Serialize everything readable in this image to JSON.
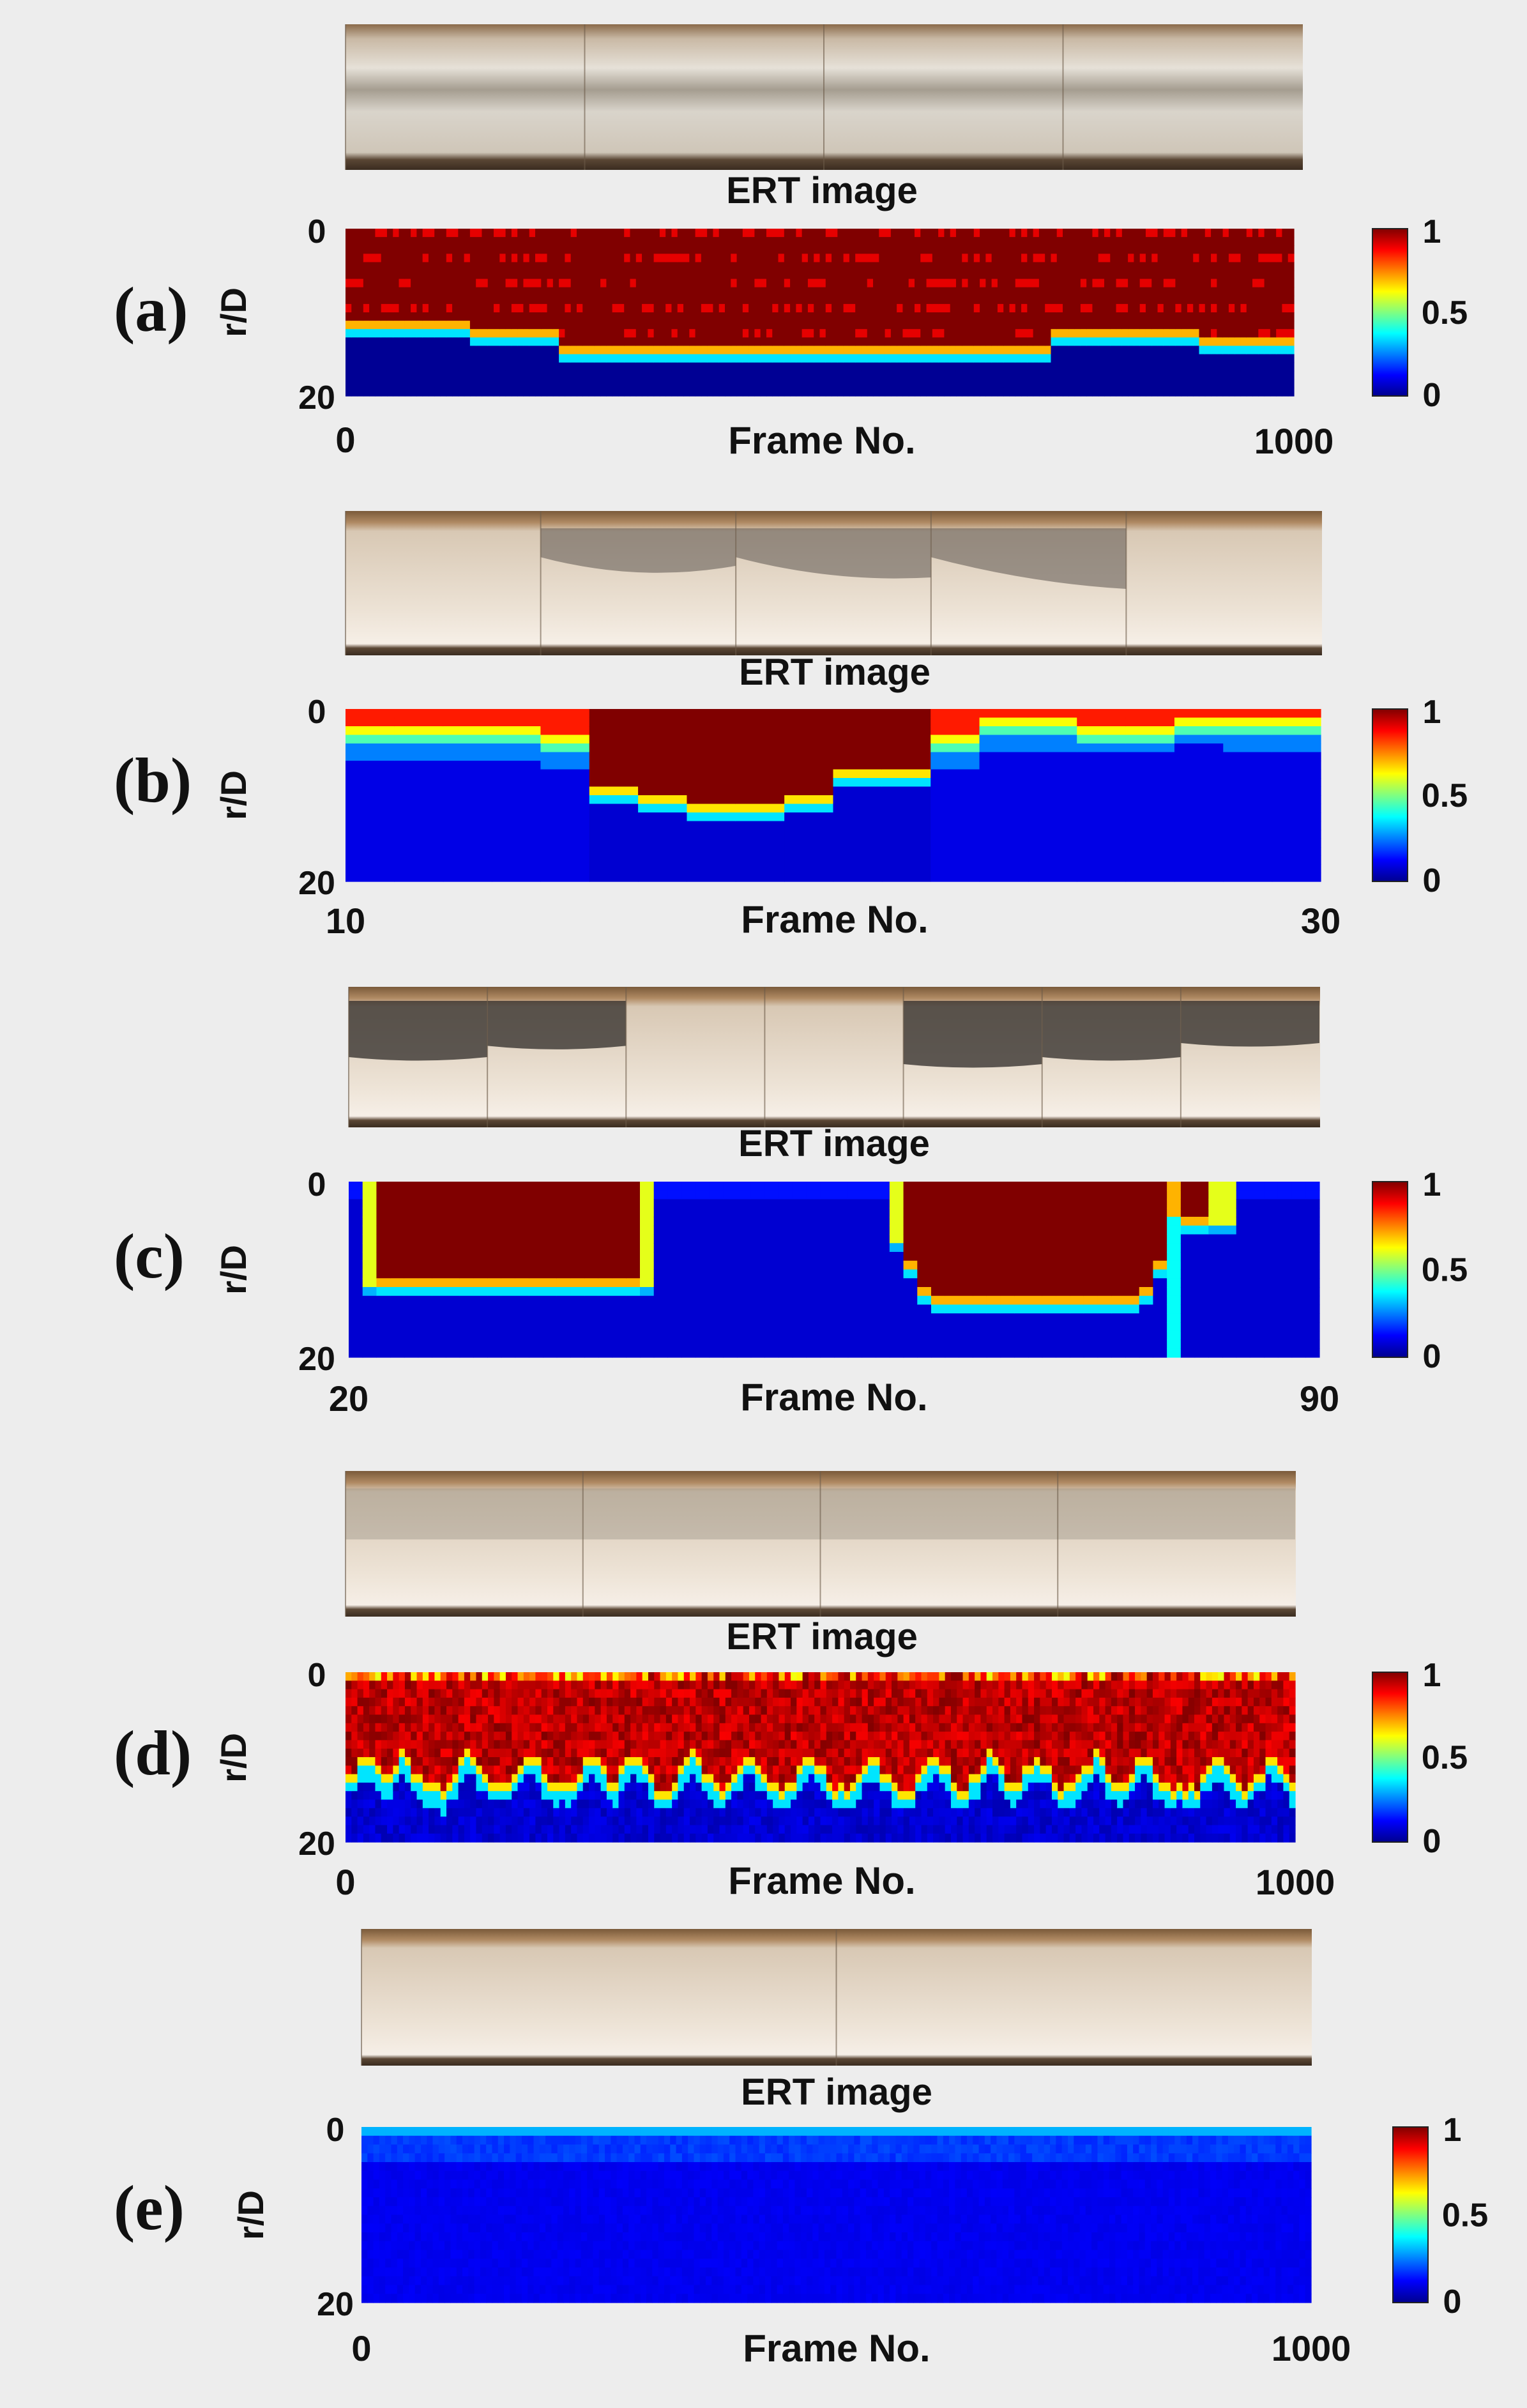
{
  "colors": {
    "background": "#ededed",
    "colormap": "jet",
    "photo_tone": "#e9dccd"
  },
  "photo_strip_label": "flow photographs",
  "chart_data": [
    {
      "type": "heatmap",
      "panel_label": "(a)",
      "title": "ERT image",
      "xlabel": "Frame No.",
      "ylabel": "r/D",
      "x_ticks": [
        "0",
        "1000"
      ],
      "y_ticks": [
        "0",
        "20"
      ],
      "xlim": [
        0,
        1000
      ],
      "ylim": [
        20,
        0
      ],
      "colorbar_ticks": [
        "1",
        "0.5",
        "0"
      ],
      "clim": [
        0,
        1
      ],
      "photo_frames": 4,
      "interface_r": [
        [
          0,
          11.5
        ],
        [
          125,
          11.5
        ],
        [
          130,
          13
        ],
        [
          220,
          13
        ],
        [
          225,
          14.5
        ],
        [
          740,
          14.5
        ],
        [
          745,
          13
        ],
        [
          895,
          13
        ],
        [
          900,
          14
        ],
        [
          1000,
          14
        ]
      ]
    },
    {
      "type": "heatmap",
      "panel_label": "(b)",
      "title": "ERT image",
      "xlabel": "Frame No.",
      "ylabel": "r/D",
      "x_ticks": [
        "10",
        "30"
      ],
      "y_ticks": [
        "0",
        "20"
      ],
      "xlim": [
        10,
        30
      ],
      "ylim": [
        20,
        0
      ],
      "colorbar_ticks": [
        "1",
        "0.5",
        "0"
      ],
      "clim": [
        0,
        1
      ],
      "photo_frames": 5,
      "columns": [
        4,
        4,
        4,
        4,
        5,
        9.5,
        11,
        11.5,
        12,
        10.5,
        8,
        7.5,
        5,
        3,
        3,
        3.5,
        3.5,
        2.5,
        3,
        3
      ],
      "saturated": [
        0,
        0,
        0,
        0,
        0,
        1,
        1,
        1,
        1,
        1,
        1,
        1,
        0,
        0,
        0,
        0,
        0,
        0,
        0,
        0
      ]
    },
    {
      "type": "heatmap",
      "panel_label": "(c)",
      "title": "ERT image",
      "xlabel": "Frame No.",
      "ylabel": "r/D",
      "x_ticks": [
        "20",
        "90"
      ],
      "y_ticks": [
        "0",
        "20"
      ],
      "xlim": [
        20,
        90
      ],
      "ylim": [
        20,
        0
      ],
      "colorbar_ticks": [
        "1",
        "0.5",
        "0"
      ],
      "clim": [
        0,
        1
      ],
      "photo_frames": 7,
      "slugs": [
        {
          "start": 21,
          "end": 42,
          "depth": 11.5,
          "dip": 0
        },
        {
          "start": 59,
          "end": 84,
          "depth": 13.5,
          "dip": 1
        }
      ]
    },
    {
      "type": "heatmap",
      "panel_label": "(d)",
      "title": "ERT image",
      "xlabel": "Frame No.",
      "ylabel": "r/D",
      "x_ticks": [
        "0",
        "1000"
      ],
      "y_ticks": [
        "0",
        "20"
      ],
      "xlim": [
        0,
        1000
      ],
      "ylim": [
        20,
        0
      ],
      "colorbar_ticks": [
        "1",
        "0.5",
        "0"
      ],
      "clim": [
        0,
        1
      ],
      "photo_frames": 4,
      "wave_peaks": [
        20,
        60,
        130,
        195,
        260,
        305,
        365,
        425,
        490,
        555,
        620,
        680,
        730,
        790,
        840,
        920,
        975
      ],
      "base_depth": 14
    },
    {
      "type": "heatmap",
      "panel_label": "(e)",
      "title": "ERT image",
      "xlabel": "Frame No.",
      "ylabel": "r/D",
      "x_ticks": [
        "0",
        "1000"
      ],
      "y_ticks": [
        "0",
        "20"
      ],
      "xlim": [
        0,
        1000
      ],
      "ylim": [
        20,
        0
      ],
      "colorbar_ticks": [
        "1",
        "0.5",
        "0"
      ],
      "clim": [
        0,
        1
      ],
      "photo_frames": 2,
      "top_value": 0.3,
      "bulk_value": 0.1
    }
  ]
}
